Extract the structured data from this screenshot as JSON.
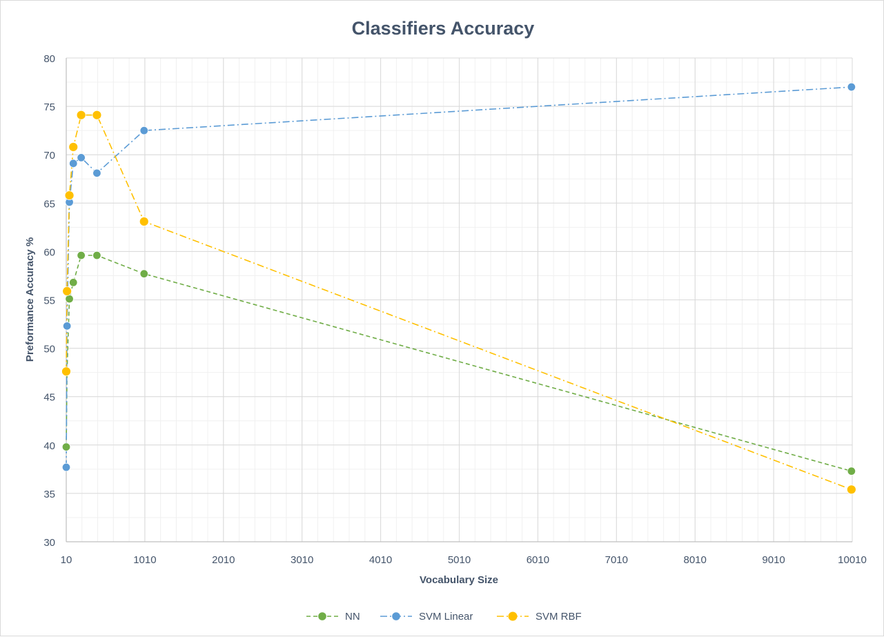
{
  "chart_data": {
    "type": "line",
    "title": "Classifiers Accuracy",
    "xlabel": "Vocabulary Size",
    "ylabel": "Preformance Accuracy %",
    "xlim": [
      10,
      10010
    ],
    "ylim": [
      30,
      80
    ],
    "x_ticks": [
      "10",
      "1010",
      "2010",
      "3010",
      "4010",
      "5010",
      "6010",
      "7010",
      "8010",
      "9010",
      "10010"
    ],
    "y_ticks": [
      "30",
      "35",
      "40",
      "45",
      "50",
      "55",
      "60",
      "65",
      "70",
      "75",
      "80"
    ],
    "grid": true,
    "legend_position": "bottom",
    "series": [
      {
        "name": "NN",
        "color": "#70ad47",
        "dash": "dash",
        "x": [
          10,
          20,
          50,
          100,
          200,
          400,
          1000,
          10000
        ],
        "y": [
          39.8,
          47.6,
          55.1,
          56.8,
          59.6,
          59.6,
          57.7,
          37.3
        ]
      },
      {
        "name": "SVM Linear",
        "color": "#5b9bd5",
        "dash": "dashdot",
        "x": [
          10,
          20,
          50,
          100,
          200,
          400,
          1000,
          10000
        ],
        "y": [
          37.7,
          52.3,
          65.1,
          69.1,
          69.7,
          68.1,
          72.5,
          77.0
        ]
      },
      {
        "name": "SVM RBF",
        "color": "#ffc000",
        "dash": "dashdot",
        "x": [
          10,
          20,
          50,
          100,
          200,
          400,
          1000,
          10000
        ],
        "y": [
          47.6,
          55.9,
          65.8,
          70.8,
          74.1,
          74.1,
          63.1,
          35.4
        ]
      }
    ]
  }
}
